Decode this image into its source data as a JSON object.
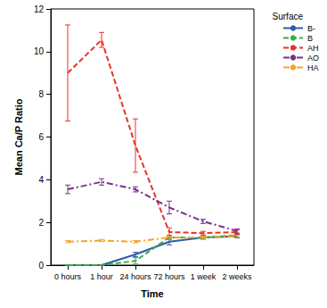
{
  "chart_data": {
    "type": "line",
    "x_label": "Time",
    "y_label": "Mean Ca/P Ratio",
    "legend_title": "Surface",
    "legend": "right",
    "grid": false,
    "categories": [
      "0 hours",
      "1 hour",
      "24 hours",
      "72 hours",
      "1 week",
      "2 weeks"
    ],
    "ylim": [
      0,
      12
    ],
    "yticks": [
      0,
      2,
      4,
      6,
      8,
      10,
      12
    ],
    "series": [
      {
        "name": "B-",
        "color": "#2b5ca8",
        "line_style": "solid",
        "values": [
          0,
          0,
          0.5,
          1.1,
          1.3,
          1.35
        ],
        "errors": [
          0,
          0,
          0.1,
          0.15,
          0.08,
          0.08
        ]
      },
      {
        "name": "B",
        "color": "#3daa44",
        "line_style": "dashed",
        "values": [
          0,
          0,
          0.2,
          1.3,
          1.3,
          1.4
        ],
        "errors": [
          0,
          0,
          0.15,
          0.1,
          0.08,
          0.08
        ]
      },
      {
        "name": "AH",
        "color": "#e8332b",
        "line_style": "dashed",
        "values": [
          9.0,
          10.55,
          5.6,
          1.55,
          1.5,
          1.55
        ],
        "errors": [
          2.25,
          0.35,
          1.25,
          0.2,
          0.08,
          0.1
        ]
      },
      {
        "name": "AO",
        "color": "#7b2d8e",
        "line_style": "dashdot",
        "values": [
          3.55,
          3.9,
          3.55,
          2.7,
          2.05,
          1.6
        ],
        "errors": [
          0.2,
          0.15,
          0.12,
          0.3,
          0.1,
          0.1
        ]
      },
      {
        "name": "HA",
        "color": "#f5a524",
        "line_style": "dashdot",
        "values": [
          1.1,
          1.15,
          1.1,
          1.3,
          1.3,
          1.35
        ],
        "errors": [
          0.05,
          0.05,
          0.05,
          0.05,
          0.05,
          0.05
        ]
      }
    ]
  }
}
